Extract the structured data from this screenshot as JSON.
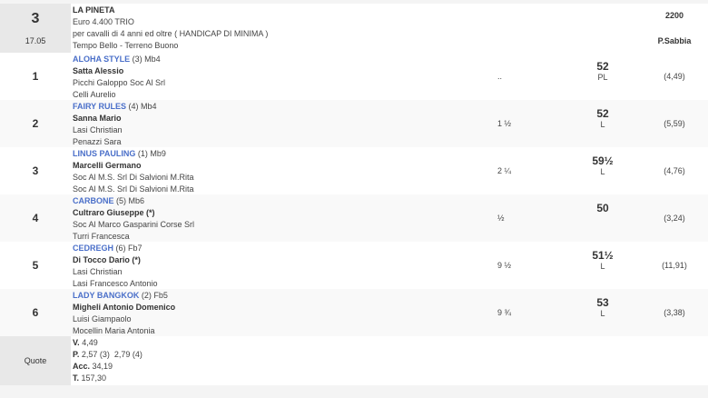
{
  "race": {
    "number": "3",
    "time": "17.05",
    "name": "LA PINETA",
    "prize": "Euro 4.400 TRIO",
    "conditions": "per cavalli di 4 anni ed oltre ( HANDICAP DI MINIMA )",
    "weather": "Tempo Bello - Terreno Buono",
    "distance": "2200",
    "track": "P.Sabbia"
  },
  "runners": [
    {
      "pos": "1",
      "horse": "ALOHA STYLE",
      "extra": " (3) Mb4",
      "jockey": "Satta Alessio",
      "owner": "Picchi Galoppo Soc Al Srl",
      "trainer": "Celli Aurelio",
      "margin": "..",
      "weight": "52",
      "weight_note": "PL",
      "odds": "(4,49)"
    },
    {
      "pos": "2",
      "horse": "FAIRY RULES",
      "extra": " (4) Mb4",
      "jockey": "Sanna Mario",
      "owner": "Lasi Christian",
      "trainer": "Penazzi Sara",
      "margin": "1 ½",
      "weight": "52",
      "weight_note": "L",
      "odds": "(5,59)"
    },
    {
      "pos": "3",
      "horse": "LINUS PAULING",
      "extra": " (1) Mb9",
      "jockey": "Marcelli Germano",
      "owner": "Soc Al M.S. Srl Di Salvioni M.Rita",
      "trainer": "Soc Al M.S. Srl Di Salvioni M.Rita",
      "margin": "2 ¼",
      "weight": "59½",
      "weight_note": "L",
      "odds": "(4,76)"
    },
    {
      "pos": "4",
      "horse": "CARBONE",
      "extra": " (5) Mb6",
      "jockey": "Cultraro Giuseppe (*)",
      "owner": "Soc Al Marco Gasparini Corse Srl",
      "trainer": "Turri Francesca",
      "margin": "½",
      "weight": "50",
      "weight_note": "",
      "odds": "(3,24)"
    },
    {
      "pos": "5",
      "horse": "CEDREGH",
      "extra": " (6) Fb7",
      "jockey": "Di Tocco Dario (*)",
      "owner": "Lasi Christian",
      "trainer": "Lasi Francesco Antonio",
      "margin": "9 ½",
      "weight": "51½",
      "weight_note": "L",
      "odds": "(11,91)"
    },
    {
      "pos": "6",
      "horse": "LADY BANGKOK",
      "extra": " (2) Fb5",
      "jockey": "Migheli Antonio Domenico",
      "owner": "Luisi Giampaolo",
      "trainer": "Mocellin Maria Antonia",
      "margin": "9 ¾",
      "weight": "53",
      "weight_note": "L",
      "odds": "(3,38)"
    }
  ],
  "quote": {
    "label": "Quote",
    "lines": [
      {
        "k": "V.",
        "v": " 4,49"
      },
      {
        "k": "P.",
        "v": " 2,57 (3)  2,79 (4)"
      },
      {
        "k": "Acc.",
        "v": " 34,19"
      },
      {
        "k": "T.",
        "v": " 157,30"
      }
    ]
  }
}
